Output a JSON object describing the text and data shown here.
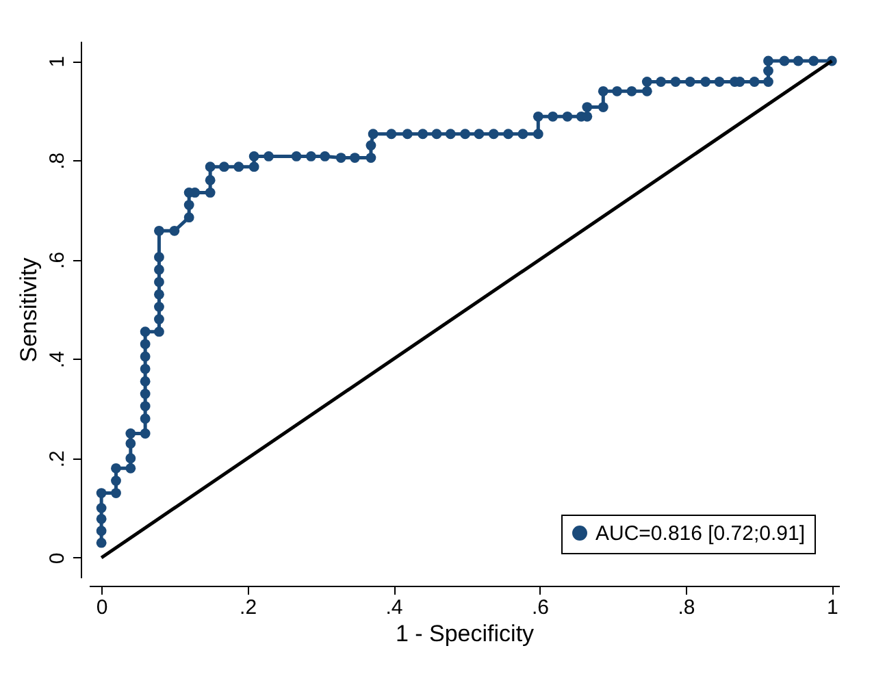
{
  "chart_data": {
    "type": "line",
    "xlabel": "1 - Specificity",
    "ylabel": "Sensitivity",
    "xlim": [
      -0.017,
      1.01
    ],
    "ylim": [
      -0.04,
      1.04
    ],
    "xticks": [
      0,
      {
        "value": 0.2,
        "label": ".2"
      },
      {
        "value": 0.4,
        "label": ".4"
      },
      {
        "value": 0.6,
        "label": ".6"
      },
      {
        "value": 0.8,
        "label": ".8"
      },
      1
    ],
    "yticks": [
      0,
      {
        "value": 0.2,
        "label": ".2"
      },
      {
        "value": 0.4,
        "label": ".4"
      },
      {
        "value": 0.6,
        "label": ".6"
      },
      {
        "value": 0.8,
        "label": ".8"
      },
      1
    ],
    "grid": false,
    "legend": "bottom right",
    "line_style": "solid",
    "series": [
      {
        "name": "AUC=0.816 [0.72;0.91]",
        "color": "#1a4a7a",
        "marker": "circle",
        "x": [
          0,
          0,
          0,
          0,
          0,
          0.02,
          0.02,
          0.02,
          0.04,
          0.04,
          0.04,
          0.04,
          0.06,
          0.06,
          0.06,
          0.06,
          0.06,
          0.06,
          0.06,
          0.06,
          0.06,
          0.079,
          0.079,
          0.079,
          0.079,
          0.079,
          0.079,
          0.079,
          0.079,
          0.1,
          0.12,
          0.12,
          0.12,
          0.128,
          0.149,
          0.149,
          0.149,
          0.168,
          0.188,
          0.209,
          0.209,
          0.229,
          0.267,
          0.287,
          0.306,
          0.328,
          0.347,
          0.369,
          0.369,
          0.372,
          0.397,
          0.419,
          0.44,
          0.459,
          0.478,
          0.498,
          0.517,
          0.537,
          0.557,
          0.577,
          0.598,
          0.598,
          0.618,
          0.638,
          0.657,
          0.665,
          0.665,
          0.687,
          0.687,
          0.706,
          0.726,
          0.747,
          0.747,
          0.766,
          0.786,
          0.806,
          0.827,
          0.846,
          0.867,
          0.874,
          0.894,
          0.913,
          0.913,
          0.913,
          0.935,
          0.954,
          0.975,
          1
        ],
        "values": [
          0.03,
          0.054,
          0.078,
          0.1,
          0.13,
          0.13,
          0.155,
          0.18,
          0.18,
          0.2,
          0.23,
          0.25,
          0.25,
          0.28,
          0.305,
          0.33,
          0.355,
          0.38,
          0.405,
          0.43,
          0.455,
          0.455,
          0.48,
          0.505,
          0.53,
          0.555,
          0.58,
          0.605,
          0.658,
          0.658,
          0.685,
          0.71,
          0.735,
          0.735,
          0.735,
          0.76,
          0.787,
          0.787,
          0.787,
          0.787,
          0.808,
          0.808,
          0.808,
          0.808,
          0.808,
          0.805,
          0.805,
          0.805,
          0.83,
          0.853,
          0.853,
          0.853,
          0.853,
          0.853,
          0.853,
          0.853,
          0.853,
          0.853,
          0.853,
          0.853,
          0.853,
          0.888,
          0.888,
          0.888,
          0.888,
          0.888,
          0.907,
          0.907,
          0.939,
          0.939,
          0.939,
          0.939,
          0.958,
          0.958,
          0.958,
          0.958,
          0.958,
          0.958,
          0.958,
          0.958,
          0.958,
          0.958,
          0.98,
          1,
          1,
          1,
          1,
          1
        ]
      },
      {
        "color": "#000000",
        "marker": "none",
        "x": [
          0,
          1
        ],
        "values": [
          0,
          1
        ]
      }
    ]
  }
}
